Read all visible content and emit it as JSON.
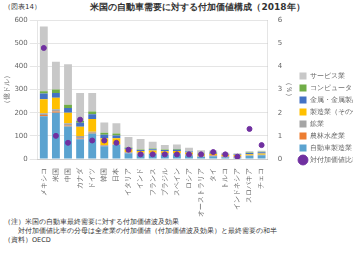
{
  "chart_data": {
    "type": "bar",
    "title": "米国の自動車需要に対する付加価値構成（2018年）",
    "annotations": [
      "（図表14）",
      "（注）米国の自動車最終需要に対する付加価値波及効果",
      "　　対付加価値比率の分母は全産業の付加価値（付加価値波及効果）と最終需要の和半",
      "（資料）OECD"
    ],
    "y_label": "（億ドル）",
    "y2_label": "（％）",
    "categories": [
      "メキシコ",
      "米国",
      "中国",
      "カナダ",
      "ドイツ",
      "韓国",
      "日本",
      "イタリア",
      "インド",
      "フランス",
      "ブラジル",
      "スペイン",
      "ロシア",
      "オーストラリア",
      "タイ",
      "トルコ",
      "インドネシア",
      "スロバキア",
      "チェコ"
    ],
    "stacked": true,
    "grid": true,
    "legend": "right",
    "ylim": [
      0,
      600
    ],
    "yticks": [
      0,
      100,
      200,
      300,
      400,
      500,
      600
    ],
    "y2lim": [
      0,
      6
    ],
    "y2ticks": [
      0,
      1,
      2,
      3,
      4,
      5,
      6
    ],
    "series": [
      {
        "name": "自動車製造業",
        "color": "#5ba3d0",
        "values": [
          185,
          200,
          140,
          85,
          110,
          55,
          60,
          25,
          20,
          22,
          18,
          20,
          15,
          10,
          12,
          8,
          7,
          14,
          16
        ]
      },
      {
        "name": "農林水産業",
        "color": "#ed7d31",
        "values": [
          5,
          5,
          5,
          4,
          3,
          2,
          2,
          2,
          3,
          2,
          3,
          2,
          2,
          1,
          3,
          2,
          3,
          1,
          1
        ]
      },
      {
        "name": "鉱業",
        "color": "#a5a5a5",
        "values": [
          8,
          10,
          10,
          10,
          5,
          3,
          3,
          3,
          4,
          3,
          5,
          3,
          4,
          3,
          2,
          3,
          3,
          1,
          1
        ]
      },
      {
        "name": "製造業（その他）",
        "color": "#ffc000",
        "values": [
          60,
          50,
          45,
          40,
          55,
          30,
          25,
          12,
          8,
          10,
          8,
          10,
          7,
          5,
          6,
          5,
          4,
          5,
          6
        ]
      },
      {
        "name": "金属・金属製品製造",
        "color": "#4472c4",
        "values": [
          25,
          20,
          20,
          18,
          20,
          15,
          12,
          5,
          4,
          5,
          5,
          5,
          4,
          3,
          4,
          3,
          2,
          5,
          5
        ]
      },
      {
        "name": "コンピュータ・電子製品",
        "color": "#70ad47",
        "values": [
          10,
          15,
          15,
          8,
          12,
          8,
          8,
          3,
          2,
          3,
          2,
          3,
          2,
          1,
          2,
          1,
          1,
          2,
          2
        ]
      },
      {
        "name": "サービス業",
        "color": "#c8c8c8",
        "values": [
          280,
          120,
          175,
          120,
          80,
          45,
          45,
          45,
          45,
          30,
          20,
          20,
          15,
          15,
          8,
          5,
          5,
          5,
          5
        ]
      },
      {
        "name": "対付加価値比率（右軸）",
        "type": "scatter",
        "marker": "circle",
        "axis": "y2",
        "color": "#7030a0",
        "values": [
          4.8,
          1.0,
          0.7,
          1.7,
          0.8,
          0.8,
          0.7,
          0.4,
          0.2,
          0.2,
          0.2,
          0.2,
          0.2,
          0.2,
          0.3,
          0.2,
          0.1,
          1.3,
          0.6
        ]
      }
    ]
  }
}
